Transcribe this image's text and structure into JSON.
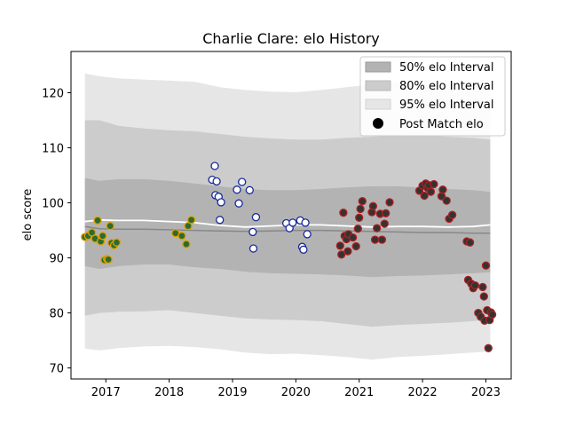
{
  "chart_data": {
    "type": "scatter",
    "title": "Charlie Clare: elo History",
    "xlabel": "",
    "ylabel": "elo score",
    "xlim": [
      2016.45,
      2023.4
    ],
    "ylim": [
      68,
      127.5
    ],
    "x_ticks": [
      2017,
      2018,
      2019,
      2020,
      2021,
      2022,
      2023
    ],
    "y_ticks": [
      70,
      80,
      90,
      100,
      110,
      120
    ],
    "grid": false,
    "legend_position": "top-right",
    "legend": [
      "50% elo Interval",
      "80% elo Interval",
      "95% elo Interval",
      "Post Match elo"
    ],
    "colors": {
      "band50": "#b3b3b3",
      "band80": "#cccccc",
      "band95": "#e6e6e6",
      "median_line": "#888888",
      "mean_line": "#ffffff",
      "point_face": "#333333"
    },
    "bands": {
      "x": [
        2016.67,
        2016.9,
        2017.2,
        2017.6,
        2018.0,
        2018.4,
        2018.8,
        2019.2,
        2019.6,
        2020.0,
        2020.4,
        2020.8,
        2021.2,
        2021.6,
        2022.0,
        2022.4,
        2022.8,
        2023.07
      ],
      "p95_low": [
        73.5,
        73.2,
        73.6,
        73.9,
        74.0,
        73.8,
        73.4,
        72.8,
        72.5,
        72.6,
        72.3,
        72.0,
        71.5,
        72.0,
        72.2,
        72.5,
        72.8,
        73.0
      ],
      "p95_high": [
        123.5,
        123.0,
        122.6,
        122.4,
        122.2,
        122.0,
        121.0,
        120.5,
        120.2,
        120.1,
        120.5,
        121.0,
        121.5,
        121.8,
        121.8,
        121.5,
        121.3,
        121.0
      ],
      "p80_low": [
        79.5,
        80.0,
        80.2,
        80.3,
        80.5,
        80.0,
        79.5,
        79.0,
        78.8,
        78.7,
        78.5,
        78.0,
        77.5,
        77.8,
        78.0,
        78.2,
        78.5,
        78.8
      ],
      "p80_high": [
        115.0,
        115.0,
        114.0,
        113.5,
        113.2,
        113.0,
        112.5,
        112.0,
        111.7,
        111.5,
        111.5,
        111.8,
        112.0,
        112.3,
        112.3,
        112.0,
        111.8,
        111.5
      ],
      "p50_low": [
        88.5,
        88.0,
        88.5,
        88.8,
        88.8,
        88.3,
        88.0,
        87.5,
        87.2,
        87.1,
        87.0,
        86.8,
        86.5,
        86.7,
        86.8,
        87.0,
        87.2,
        87.4
      ],
      "p50_high": [
        104.5,
        104.0,
        104.3,
        104.3,
        104.0,
        103.5,
        103.0,
        102.5,
        102.3,
        102.3,
        102.5,
        102.8,
        103.0,
        103.0,
        102.8,
        102.5,
        102.3,
        102.0
      ],
      "median": [
        95.7,
        95.3,
        95.2,
        95.2,
        95.1,
        95.0,
        94.9,
        94.8,
        94.9,
        95.0,
        95.0,
        94.9,
        94.8,
        94.7,
        94.6,
        94.6,
        94.5,
        94.5
      ],
      "mean": [
        96.6,
        96.9,
        96.8,
        96.8,
        96.6,
        96.4,
        95.9,
        95.6,
        95.8,
        96.0,
        96.0,
        95.8,
        95.6,
        95.7,
        95.7,
        95.6,
        95.7,
        96.0
      ]
    },
    "series": [
      {
        "edge_color": "#e0a000",
        "face_color": "#2e6b2e",
        "points": [
          [
            2016.67,
            93.8
          ],
          [
            2016.72,
            94.0
          ],
          [
            2016.78,
            94.6
          ],
          [
            2016.83,
            93.5
          ],
          [
            2016.87,
            96.8
          ],
          [
            2016.92,
            93.0
          ],
          [
            2016.95,
            94.0
          ],
          [
            2016.98,
            89.6
          ],
          [
            2017.02,
            89.8
          ],
          [
            2017.04,
            89.7
          ],
          [
            2017.07,
            95.8
          ],
          [
            2017.09,
            92.7
          ],
          [
            2017.13,
            92.3
          ],
          [
            2017.17,
            92.8
          ],
          [
            2018.1,
            94.5
          ],
          [
            2018.2,
            94.0
          ],
          [
            2018.27,
            92.5
          ],
          [
            2018.3,
            95.8
          ],
          [
            2018.35,
            96.9
          ]
        ]
      },
      {
        "edge_color": "#1a2a9a",
        "face_color": "#ffffff",
        "points": [
          [
            2018.68,
            104.2
          ],
          [
            2018.72,
            106.7
          ],
          [
            2018.73,
            101.4
          ],
          [
            2018.75,
            103.9
          ],
          [
            2018.78,
            101.1
          ],
          [
            2018.8,
            96.9
          ],
          [
            2018.82,
            100.1
          ],
          [
            2019.07,
            102.4
          ],
          [
            2019.1,
            99.9
          ],
          [
            2019.15,
            103.8
          ],
          [
            2019.27,
            102.3
          ],
          [
            2019.32,
            94.7
          ],
          [
            2019.33,
            91.7
          ],
          [
            2019.37,
            97.4
          ],
          [
            2019.85,
            96.3
          ],
          [
            2019.9,
            95.4
          ],
          [
            2019.95,
            96.4
          ],
          [
            2020.07,
            96.8
          ],
          [
            2020.1,
            92.0
          ],
          [
            2020.12,
            91.5
          ],
          [
            2020.15,
            96.4
          ],
          [
            2020.18,
            94.3
          ]
        ]
      },
      {
        "edge_color": "#b02020",
        "face_color": "#333333",
        "points": [
          [
            2020.7,
            92.2
          ],
          [
            2020.72,
            90.6
          ],
          [
            2020.75,
            98.2
          ],
          [
            2020.77,
            94.0
          ],
          [
            2020.8,
            93.4
          ],
          [
            2020.82,
            91.2
          ],
          [
            2020.83,
            94.3
          ],
          [
            2020.9,
            93.7
          ],
          [
            2020.95,
            92.1
          ],
          [
            2020.98,
            95.3
          ],
          [
            2021.0,
            97.3
          ],
          [
            2021.02,
            98.9
          ],
          [
            2021.05,
            100.3
          ],
          [
            2021.2,
            98.3
          ],
          [
            2021.22,
            99.4
          ],
          [
            2021.25,
            93.3
          ],
          [
            2021.28,
            95.4
          ],
          [
            2021.33,
            98.0
          ],
          [
            2021.36,
            93.3
          ],
          [
            2021.4,
            96.2
          ],
          [
            2021.42,
            98.1
          ],
          [
            2021.48,
            100.1
          ],
          [
            2021.95,
            102.2
          ],
          [
            2022.0,
            103.1
          ],
          [
            2022.03,
            101.3
          ],
          [
            2022.05,
            103.5
          ],
          [
            2022.08,
            102.7
          ],
          [
            2022.1,
            103.2
          ],
          [
            2022.13,
            102.0
          ],
          [
            2022.18,
            103.4
          ],
          [
            2022.3,
            101.2
          ],
          [
            2022.32,
            102.4
          ],
          [
            2022.38,
            100.4
          ],
          [
            2022.42,
            97.1
          ],
          [
            2022.47,
            97.8
          ],
          [
            2022.7,
            93.0
          ],
          [
            2022.75,
            92.8
          ],
          [
            2022.72,
            86.0
          ],
          [
            2022.77,
            85.3
          ],
          [
            2022.8,
            84.5
          ],
          [
            2022.83,
            85.0
          ],
          [
            2022.88,
            80.0
          ],
          [
            2022.92,
            79.3
          ],
          [
            2022.95,
            84.7
          ],
          [
            2022.97,
            83.0
          ],
          [
            2022.98,
            78.6
          ],
          [
            2023.0,
            88.6
          ],
          [
            2023.02,
            80.5
          ],
          [
            2023.04,
            73.6
          ],
          [
            2023.06,
            78.7
          ],
          [
            2023.08,
            80.1
          ],
          [
            2023.1,
            79.7
          ]
        ]
      }
    ]
  }
}
